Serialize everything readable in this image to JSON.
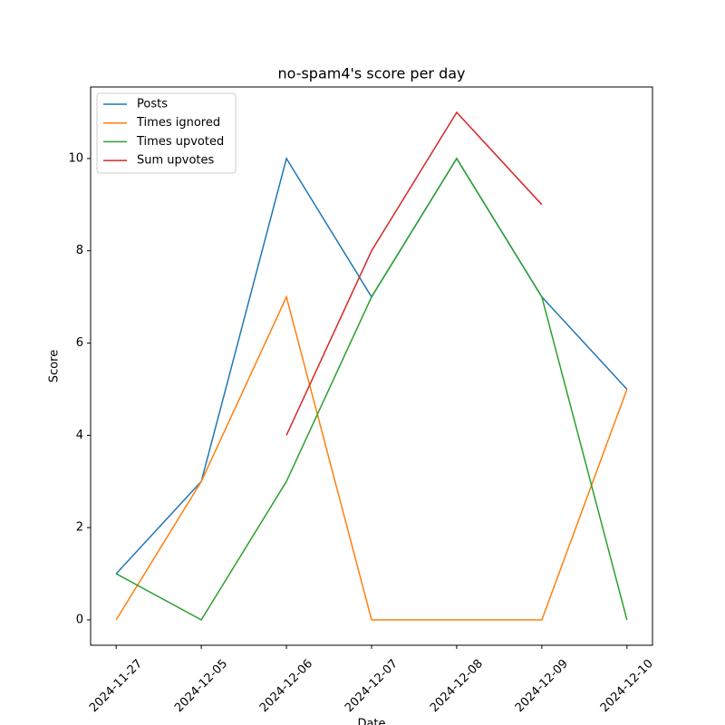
{
  "chart_data": {
    "type": "line",
    "title": "no-spam4's score per day",
    "x_label": "Date",
    "y_label": "Score",
    "categories": [
      "2024-11-27",
      "2024-12-05",
      "2024-12-06",
      "2024-12-07",
      "2024-12-08",
      "2024-12-09",
      "2024-12-10"
    ],
    "series": [
      {
        "name": "Posts",
        "color": "#1f77b4",
        "values": [
          1,
          3,
          10,
          7,
          10,
          7,
          5
        ]
      },
      {
        "name": "Times ignored",
        "color": "#ff7f0e",
        "values": [
          0,
          3,
          7,
          0,
          0,
          0,
          5
        ]
      },
      {
        "name": "Times upvoted",
        "color": "#2ca02c",
        "values": [
          1,
          0,
          3,
          7,
          10,
          7,
          0
        ]
      },
      {
        "name": "Sum upvotes",
        "color": "#d62728",
        "values": [
          null,
          null,
          4,
          8,
          11,
          9,
          null
        ]
      }
    ],
    "ylim": [
      -0.55,
      11.55
    ],
    "yticks": [
      0,
      2,
      4,
      6,
      8,
      10
    ],
    "legend": "upper left"
  }
}
